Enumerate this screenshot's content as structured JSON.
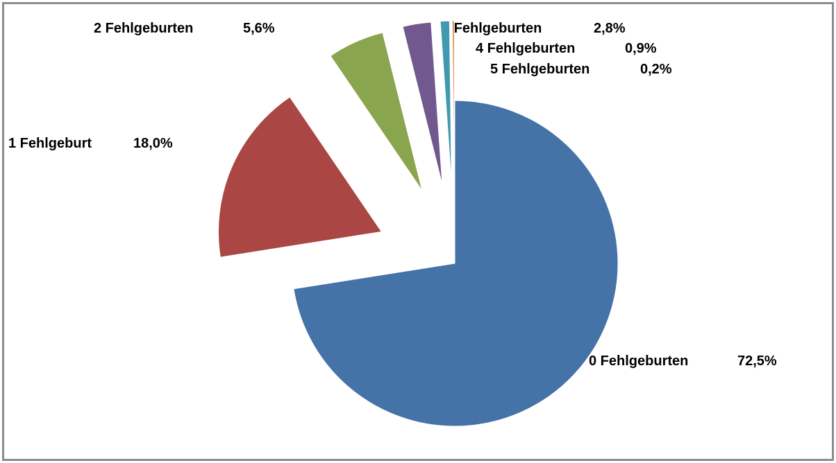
{
  "chart_data": {
    "type": "pie",
    "categories": [
      "0 Fehlgeburten",
      "1 Fehlgeburt",
      "2 Fehlgeburten",
      "3 Fehlgeburten",
      "4 Fehlgeburten",
      "5 Fehlgeburten"
    ],
    "values": [
      72.5,
      18.0,
      5.6,
      2.8,
      0.9,
      0.2
    ],
    "value_labels": [
      "72,5%",
      "18,0%",
      "5,6%",
      "2,8%",
      "0,9%",
      "0,2%"
    ],
    "colors": [
      "#4572a7",
      "#aa4643",
      "#89a54e",
      "#71588f",
      "#4198af",
      "#db843d"
    ]
  }
}
